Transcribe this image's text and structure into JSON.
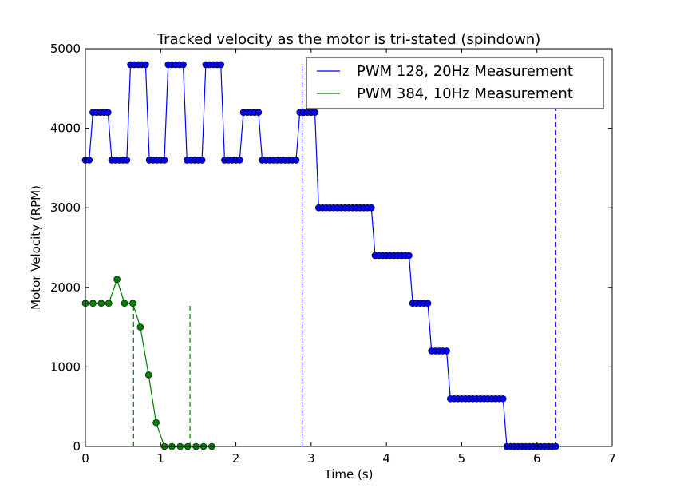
{
  "chart_data": {
    "type": "line",
    "title": "Tracked velocity as the motor is tri-stated (spindown)",
    "xlabel": "Time (s)",
    "ylabel": "Motor Velocity (RPM)",
    "xlim": [
      0,
      7
    ],
    "ylim": [
      0,
      5000
    ],
    "xticks": [
      "0",
      "1",
      "2",
      "3",
      "4",
      "5",
      "6",
      "7"
    ],
    "yticks": [
      "0",
      "1000",
      "2000",
      "3000",
      "4000",
      "5000"
    ],
    "grid": false,
    "legend_position": "top-right",
    "series": [
      {
        "name": "PWM 128, 20Hz Measurement",
        "color": "#0000ff",
        "marker_color": "#0000ff",
        "x": [
          0.0,
          0.05,
          0.1,
          0.15,
          0.2,
          0.25,
          0.3,
          0.35,
          0.4,
          0.45,
          0.5,
          0.55,
          0.6,
          0.65,
          0.7,
          0.75,
          0.8,
          0.85,
          0.9,
          0.95,
          1.0,
          1.05,
          1.1,
          1.15,
          1.2,
          1.25,
          1.3,
          1.35,
          1.4,
          1.45,
          1.5,
          1.55,
          1.6,
          1.65,
          1.7,
          1.75,
          1.8,
          1.85,
          1.9,
          1.95,
          2.0,
          2.05,
          2.1,
          2.15,
          2.2,
          2.25,
          2.3,
          2.35,
          2.4,
          2.45,
          2.5,
          2.55,
          2.6,
          2.65,
          2.7,
          2.75,
          2.8,
          2.85,
          2.9,
          2.95,
          3.0,
          3.05,
          3.1,
          3.15,
          3.2,
          3.25,
          3.3,
          3.35,
          3.4,
          3.45,
          3.5,
          3.55,
          3.6,
          3.65,
          3.7,
          3.75,
          3.8,
          3.85,
          3.9,
          3.95,
          4.0,
          4.05,
          4.1,
          4.15,
          4.2,
          4.25,
          4.3,
          4.35,
          4.4,
          4.45,
          4.5,
          4.55,
          4.6,
          4.65,
          4.7,
          4.75,
          4.8,
          4.85,
          4.9,
          4.95,
          5.0,
          5.05,
          5.1,
          5.15,
          5.2,
          5.25,
          5.3,
          5.35,
          5.4,
          5.45,
          5.5,
          5.55,
          5.6,
          5.65,
          5.7,
          5.75,
          5.8,
          5.85,
          5.9,
          5.95,
          6.0,
          6.05,
          6.1,
          6.15,
          6.2,
          6.25
        ],
        "y": [
          3600,
          3600,
          4200,
          4200,
          4200,
          4200,
          4200,
          3600,
          3600,
          3600,
          3600,
          3600,
          4800,
          4800,
          4800,
          4800,
          4800,
          3600,
          3600,
          3600,
          3600,
          3600,
          4800,
          4800,
          4800,
          4800,
          4800,
          3600,
          3600,
          3600,
          3600,
          3600,
          4800,
          4800,
          4800,
          4800,
          4800,
          3600,
          3600,
          3600,
          3600,
          3600,
          4200,
          4200,
          4200,
          4200,
          4200,
          3600,
          3600,
          3600,
          3600,
          3600,
          3600,
          3600,
          3600,
          3600,
          3600,
          4200,
          4200,
          4200,
          4200,
          4200,
          3000,
          3000,
          3000,
          3000,
          3000,
          3000,
          3000,
          3000,
          3000,
          3000,
          3000,
          3000,
          3000,
          3000,
          3000,
          2400,
          2400,
          2400,
          2400,
          2400,
          2400,
          2400,
          2400,
          2400,
          2400,
          1800,
          1800,
          1800,
          1800,
          1800,
          1200,
          1200,
          1200,
          1200,
          1200,
          600,
          600,
          600,
          600,
          600,
          600,
          600,
          600,
          600,
          600,
          600,
          600,
          600,
          600,
          600,
          0,
          0,
          0,
          0,
          0,
          0,
          0,
          0,
          0,
          0,
          0,
          0,
          0,
          0
        ]
      },
      {
        "name": "PWM 384, 10Hz Measurement",
        "color": "#008000",
        "marker_color": "#008000",
        "x": [
          0.0,
          0.1,
          0.21,
          0.31,
          0.42,
          0.52,
          0.63,
          0.73,
          0.84,
          0.94,
          1.05,
          1.15,
          1.26,
          1.36,
          1.47,
          1.57,
          1.68
        ],
        "y": [
          1800,
          1800,
          1800,
          1800,
          2100,
          1800,
          1800,
          1500,
          900,
          300,
          0,
          0,
          0,
          0,
          0,
          0,
          0
        ]
      }
    ],
    "vlines": [
      {
        "x": 0.64,
        "ymax": 1780,
        "color": "#008000"
      },
      {
        "x": 1.39,
        "ymax": 1780,
        "color": "#008000"
      },
      {
        "x": 2.88,
        "ymax": 4780,
        "color": "#0000ff"
      },
      {
        "x": 6.25,
        "ymax": 4780,
        "color": "#0000ff"
      }
    ]
  }
}
